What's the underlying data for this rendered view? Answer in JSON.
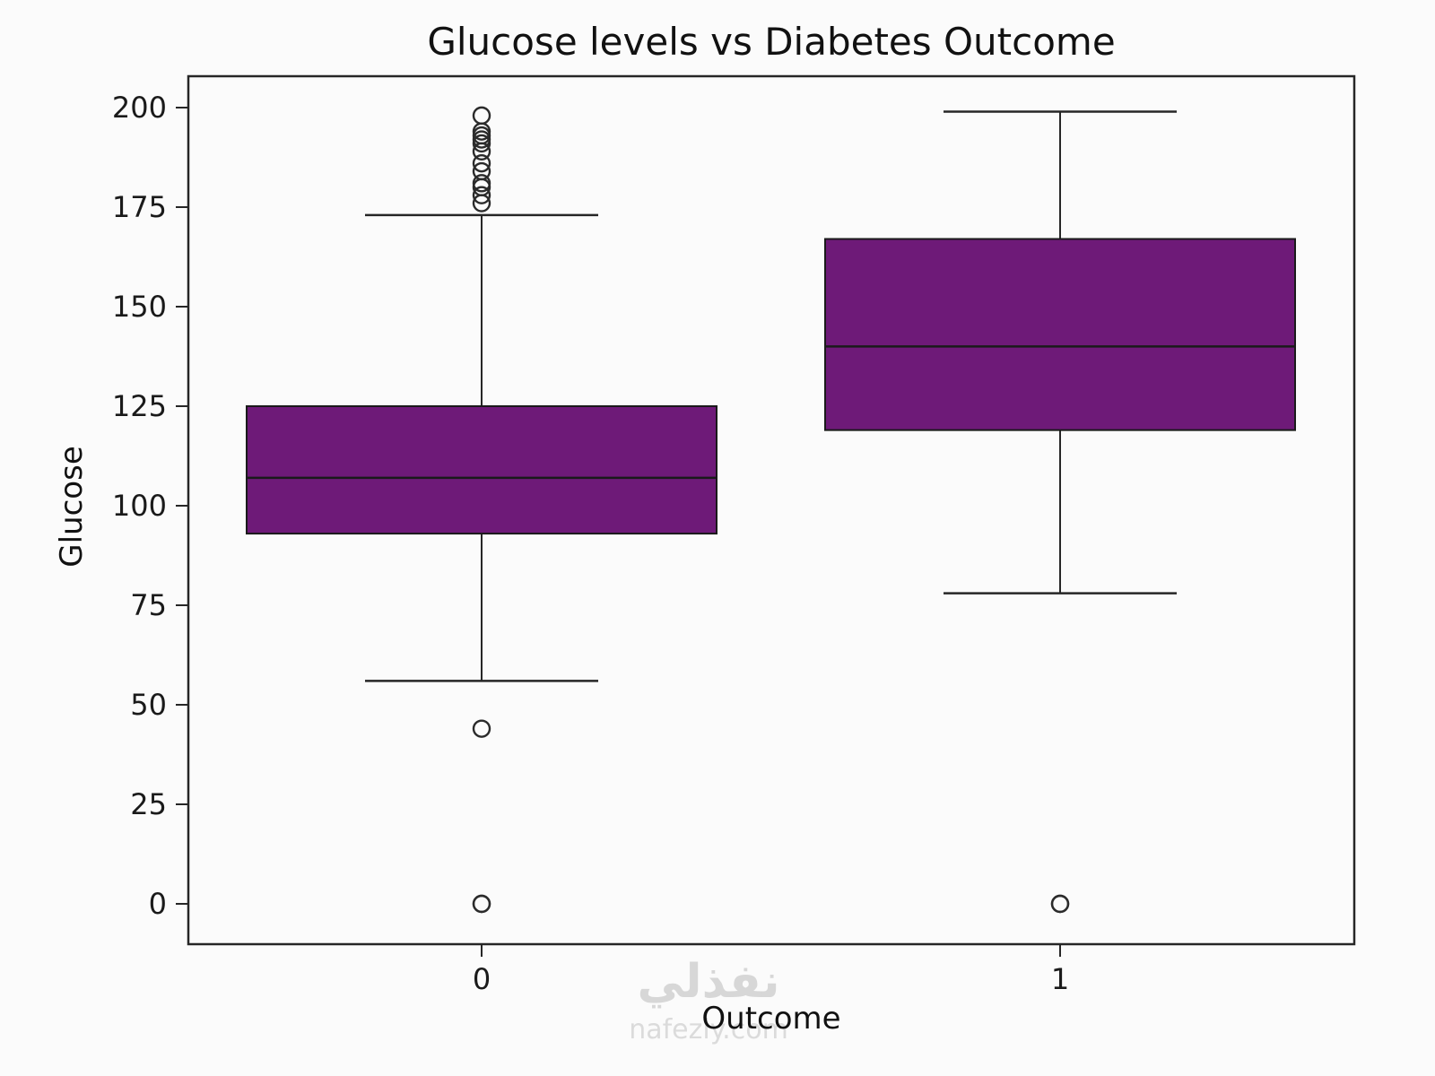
{
  "chart_data": {
    "type": "boxplot",
    "title": "Glucose levels vs Diabetes Outcome",
    "xlabel": "Outcome",
    "ylabel": "Glucose",
    "categories": [
      "0",
      "1"
    ],
    "y_ticks": [
      0,
      25,
      50,
      75,
      100,
      125,
      150,
      175,
      200
    ],
    "ylim": [
      -18,
      212
    ],
    "grid": false,
    "legend": "none",
    "box_fill_color": "#6e1a78",
    "line_color": "#262626",
    "outlier_stroke_color": "#2b2b2b",
    "series": [
      {
        "category": "0",
        "whisker_low": 56,
        "q1": 93,
        "median": 107,
        "q3": 125,
        "whisker_high": 173,
        "outliers_high": [
          198,
          194,
          193,
          192,
          191,
          189,
          186,
          184,
          181,
          180,
          178,
          176
        ],
        "outliers_low": [
          44,
          0,
          0
        ]
      },
      {
        "category": "1",
        "whisker_low": 78,
        "q1": 119,
        "median": 140,
        "q3": 167,
        "whisker_high": 199,
        "outliers_high": [],
        "outliers_low": [
          0,
          0
        ]
      }
    ],
    "watermark": {
      "line1": "نفذلي",
      "line2": "nafezly.com"
    }
  }
}
